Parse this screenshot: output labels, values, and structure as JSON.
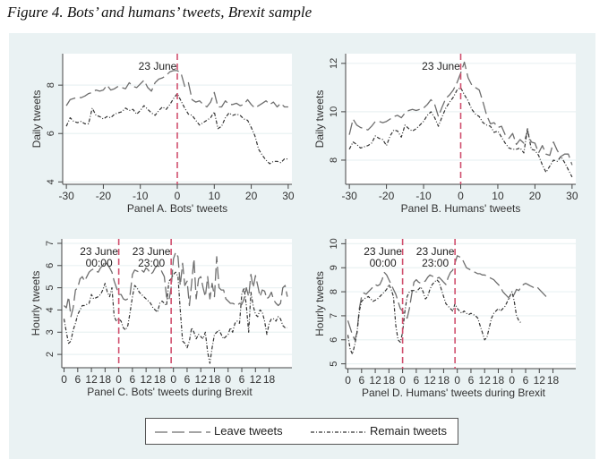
{
  "figure_title": "Figure 4. Bots’ and humans’ tweets, Brexit sample",
  "colors": {
    "leave": "#6e6e6e",
    "remain": "#333333",
    "vline": "#d0506e",
    "grid": "#eaf2f3",
    "background": "#eaf2f3"
  },
  "legend": [
    {
      "label": "Leave tweets",
      "style": "long-dash"
    },
    {
      "label": "Remain tweets",
      "style": "dash-dot"
    }
  ],
  "chart_data": [
    {
      "type": "line",
      "panel": "A",
      "xlabel": "Panel A. Bots' tweets",
      "ylabel": "Daily tweets",
      "xlim": [
        -31,
        31
      ],
      "ylim": [
        3.9,
        9.3
      ],
      "xticks": [
        -30,
        -20,
        -10,
        0,
        10,
        20,
        30
      ],
      "yticks": [
        4,
        6,
        8
      ],
      "annotations": [
        {
          "x": 0,
          "text": "23 June"
        }
      ],
      "x": [
        -30,
        -29,
        -28,
        -27,
        -26,
        -25,
        -24,
        -23,
        -22,
        -21,
        -20,
        -19,
        -18,
        -17,
        -16,
        -15,
        -14,
        -13,
        -12,
        -11,
        -10,
        -9,
        -8,
        -7,
        -6,
        -5,
        -4,
        -3,
        -2,
        -1,
        0,
        1,
        2,
        3,
        4,
        5,
        6,
        7,
        8,
        9,
        10,
        11,
        12,
        13,
        14,
        15,
        16,
        17,
        18,
        19,
        20,
        21,
        22,
        23,
        24,
        25,
        26,
        27,
        28,
        29,
        30
      ],
      "series": [
        {
          "name": "Leave tweets",
          "values": [
            7.15,
            7.4,
            7.45,
            7.5,
            7.48,
            7.55,
            7.65,
            7.7,
            7.8,
            7.75,
            7.8,
            8.0,
            7.8,
            7.85,
            7.95,
            7.9,
            7.85,
            8.1,
            7.95,
            7.9,
            8.05,
            8.2,
            7.9,
            7.75,
            8.1,
            8.25,
            8.3,
            8.4,
            8.55,
            8.6,
            8.6,
            8.5,
            7.95,
            8.1,
            7.4,
            7.3,
            7.35,
            7.2,
            7.1,
            7.3,
            7.7,
            7.1,
            7.1,
            7.35,
            7.2,
            7.2,
            7.25,
            7.15,
            7.2,
            7.4,
            7.2,
            7.05,
            7.15,
            7.25,
            7.35,
            7.2,
            7.3,
            7.1,
            7.25,
            7.1,
            7.1
          ]
        },
        {
          "name": "Remain tweets",
          "values": [
            6.3,
            6.65,
            6.5,
            6.45,
            6.5,
            6.4,
            6.4,
            7.05,
            6.75,
            6.7,
            6.6,
            6.7,
            6.65,
            6.8,
            6.85,
            6.9,
            7.05,
            6.95,
            7.0,
            6.8,
            6.95,
            7.15,
            7.0,
            6.85,
            6.75,
            6.95,
            7.1,
            7.0,
            7.2,
            7.45,
            7.65,
            7.35,
            7.05,
            6.8,
            6.75,
            6.55,
            6.35,
            6.45,
            6.55,
            6.65,
            6.9,
            6.2,
            6.3,
            6.65,
            6.85,
            6.75,
            6.8,
            6.75,
            6.6,
            6.55,
            6.25,
            5.9,
            5.35,
            5.1,
            4.9,
            4.75,
            4.85,
            4.85,
            4.8,
            4.95,
            4.95
          ]
        }
      ]
    },
    {
      "type": "line",
      "panel": "B",
      "xlabel": "Panel B. Humans' tweets",
      "ylabel": "Daily tweets",
      "xlim": [
        -31,
        31
      ],
      "ylim": [
        7,
        12.4
      ],
      "xticks": [
        -30,
        -20,
        -10,
        0,
        10,
        20,
        30
      ],
      "yticks": [
        8,
        10,
        12
      ],
      "annotations": [
        {
          "x": 0,
          "text": "23 June"
        }
      ],
      "x": [
        -30,
        -29,
        -28,
        -27,
        -26,
        -25,
        -24,
        -23,
        -22,
        -21,
        -20,
        -19,
        -18,
        -17,
        -16,
        -15,
        -14,
        -13,
        -12,
        -11,
        -10,
        -9,
        -8,
        -7,
        -6,
        -5,
        -4,
        -3,
        -2,
        -1,
        0,
        1,
        2,
        3,
        4,
        5,
        6,
        7,
        8,
        9,
        10,
        11,
        12,
        13,
        14,
        15,
        16,
        17,
        18,
        19,
        20,
        21,
        22,
        23,
        24,
        25,
        26,
        27,
        28,
        29,
        30
      ],
      "series": [
        {
          "name": "Leave tweets",
          "values": [
            9.05,
            9.7,
            9.45,
            9.35,
            9.3,
            9.25,
            9.4,
            9.6,
            9.6,
            9.55,
            9.6,
            9.7,
            9.8,
            9.85,
            9.75,
            9.95,
            10.05,
            10.1,
            10.05,
            10.1,
            10.15,
            10.3,
            10.5,
            10.3,
            9.8,
            10.2,
            10.55,
            10.7,
            10.9,
            11.2,
            11.6,
            12.05,
            11.4,
            11.1,
            11.0,
            10.9,
            10.4,
            9.85,
            9.5,
            9.55,
            9.35,
            9.4,
            9.05,
            8.9,
            9.1,
            8.65,
            8.85,
            8.7,
            9.2,
            8.75,
            8.7,
            8.3,
            8.6,
            8.25,
            8.2,
            8.75,
            8.4,
            8.15,
            8.25,
            8.25,
            7.8
          ]
        },
        {
          "name": "Remain tweets",
          "values": [
            8.45,
            8.75,
            8.65,
            8.5,
            8.55,
            8.6,
            8.7,
            9.0,
            8.9,
            8.85,
            8.6,
            9.0,
            9.25,
            9.2,
            8.95,
            9.45,
            9.3,
            9.2,
            9.3,
            9.45,
            9.6,
            9.85,
            10.0,
            9.75,
            9.4,
            9.8,
            10.15,
            10.4,
            10.6,
            10.9,
            11.0,
            10.7,
            10.45,
            10.1,
            9.9,
            9.8,
            9.55,
            9.45,
            9.4,
            9.15,
            9.2,
            8.95,
            8.7,
            8.5,
            8.45,
            8.45,
            8.5,
            8.3,
            9.3,
            8.45,
            8.4,
            8.2,
            7.8,
            7.5,
            7.75,
            8.0,
            7.95,
            8.15,
            7.9,
            7.6,
            7.3
          ]
        }
      ]
    },
    {
      "type": "line",
      "panel": "C",
      "xlabel": "Panel C. Bots' tweets during Brexit",
      "ylabel": "Hourly tweets",
      "xlim": [
        -1,
        100
      ],
      "ylim": [
        1.4,
        7.2
      ],
      "xticks": [
        0,
        6,
        12,
        18,
        24,
        30,
        36,
        42,
        48,
        54,
        60,
        66,
        72,
        78,
        84,
        90
      ],
      "xticklabels": [
        "0",
        "6",
        "12",
        "18",
        "0",
        "6",
        "12",
        "18",
        "0",
        "6",
        "12",
        "18",
        "0",
        "6",
        "12",
        "18"
      ],
      "yticks": [
        2,
        3,
        4,
        5,
        6,
        7
      ],
      "annotations": [
        {
          "x": 24,
          "text": "23 June\n00:00"
        },
        {
          "x": 47,
          "text": "23 June\n23:00"
        }
      ],
      "x_unit": "hour",
      "series": [
        {
          "name": "Leave tweets",
          "values": [
            4.2,
            4.1,
            4.6,
            3.7,
            4.1,
            4.9,
            5.0,
            5.4,
            5.5,
            5.3,
            5.5,
            5.7,
            5.8,
            5.85,
            5.75,
            5.7,
            5.9,
            6.0,
            6.2,
            6.05,
            5.9,
            5.7,
            5.3,
            5.0,
            4.7,
            4.7,
            4.5,
            4.45,
            4.5,
            4.7,
            5.6,
            5.8,
            5.75,
            5.7,
            5.8,
            5.7,
            5.9,
            5.8,
            5.6,
            5.7,
            5.9,
            6.0,
            5.95,
            5.7,
            5.5,
            4.6,
            4.4,
            5.0,
            6.3,
            6.6,
            6.4,
            5.1,
            6.1,
            5.1,
            5.3,
            4.2,
            5.2,
            6.3,
            4.5,
            5.4,
            5.5,
            5.0,
            4.6,
            5.5,
            4.5,
            5.2,
            4.6,
            6.4,
            5.0,
            4.9,
            4.9,
            4.5,
            4.4,
            4.3,
            4.3,
            4.25,
            4.2,
            4.3,
            4.25,
            4.5,
            5.0,
            4.6,
            5.6,
            5.0,
            5.55,
            5.1,
            4.6,
            4.9,
            4.85,
            4.5,
            4.6,
            4.8,
            4.45,
            4.3,
            4.2,
            4.3,
            5.0,
            5.1,
            4.6
          ]
        },
        {
          "name": "Remain tweets",
          "values": [
            3.6,
            3.0,
            2.5,
            2.6,
            3.1,
            3.4,
            3.8,
            4.0,
            4.2,
            4.2,
            4.25,
            4.3,
            4.7,
            4.5,
            4.55,
            4.6,
            4.7,
            4.9,
            5.2,
            4.8,
            4.6,
            5.0,
            3.7,
            3.5,
            3.6,
            3.5,
            3.2,
            3.1,
            3.3,
            3.9,
            4.6,
            5.1,
            5.0,
            4.8,
            4.7,
            4.6,
            4.5,
            4.4,
            4.3,
            4.1,
            4.0,
            3.9,
            4.3,
            4.4,
            4.3,
            4.2,
            5.3,
            5.4,
            5.6,
            5.7,
            5.5,
            4.0,
            2.6,
            2.5,
            2.3,
            2.6,
            3.2,
            3.0,
            2.7,
            2.9,
            2.8,
            2.7,
            3.0,
            2.1,
            1.6,
            2.3,
            2.9,
            3.0,
            3.1,
            2.9,
            2.7,
            2.8,
            2.9,
            3.2,
            3.0,
            3.4,
            3.5,
            3.4,
            4.7,
            5.0,
            4.2,
            3.0,
            4.8,
            4.2,
            3.8,
            3.7,
            4.0,
            3.9,
            3.5,
            2.9,
            3.4,
            3.6,
            3.6,
            3.5,
            3.7,
            3.6,
            3.3,
            3.2,
            3.2
          ]
        }
      ]
    },
    {
      "type": "line",
      "panel": "D",
      "xlabel": "Panel D. Humans' tweets during Brexit",
      "ylabel": "Hourly tweets",
      "xlim": [
        -1,
        100
      ],
      "ylim": [
        4.8,
        10.2
      ],
      "xticks": [
        0,
        6,
        12,
        18,
        24,
        30,
        36,
        42,
        48,
        54,
        60,
        66,
        72,
        78,
        84,
        90
      ],
      "xticklabels": [
        "0",
        "6",
        "12",
        "18",
        "0",
        "6",
        "12",
        "18",
        "0",
        "6",
        "12",
        "18",
        "0",
        "6",
        "12",
        "18"
      ],
      "yticks": [
        5,
        6,
        7,
        8,
        9,
        10
      ],
      "annotations": [
        {
          "x": 24,
          "text": "23 June\n00:00"
        },
        {
          "x": 47,
          "text": "23 June\n23:00"
        }
      ],
      "x_unit": "hour",
      "series": [
        {
          "name": "Leave tweets",
          "values": [
            6.8,
            6.5,
            6.2,
            6.0,
            6.3,
            7.3,
            7.8,
            7.95,
            7.9,
            8.0,
            8.1,
            8.2,
            8.3,
            8.25,
            8.3,
            8.5,
            8.8,
            8.7,
            8.5,
            8.3,
            8.1,
            7.9,
            7.6,
            7.3,
            7.2,
            7.0,
            6.9,
            7.3,
            7.9,
            8.4,
            8.5,
            8.4,
            8.35,
            8.4,
            8.45,
            8.6,
            8.7,
            8.65,
            8.6,
            8.55,
            8.6,
            8.5,
            8.4,
            8.3,
            8.6,
            8.8,
            8.9,
            9.2,
            9.5,
            9.45,
            9.4,
            9.2,
            9.0,
            8.95,
            8.9,
            8.85,
            8.8,
            8.75,
            8.75,
            8.7,
            8.7,
            8.65,
            8.6,
            8.55,
            8.5,
            8.4,
            8.3,
            8.2,
            8.0,
            7.9,
            7.8,
            7.7,
            7.75,
            7.9,
            8.1,
            8.05,
            8.2,
            8.3,
            8.35,
            8.3,
            8.25,
            8.2,
            8.15,
            8.2,
            8.1,
            8.0,
            7.9,
            7.8,
            7.7
          ]
        },
        {
          "name": "Remain tweets",
          "values": [
            6.2,
            5.6,
            5.4,
            5.8,
            6.3,
            7.2,
            7.6,
            7.7,
            7.75,
            7.8,
            7.7,
            7.6,
            7.65,
            7.7,
            7.8,
            7.9,
            8.0,
            8.1,
            8.3,
            8.1,
            7.8,
            6.6,
            6.0,
            5.9,
            6.3,
            7.2,
            7.8,
            8.0,
            8.05,
            8.05,
            8.0,
            8.1,
            8.2,
            8.0,
            7.7,
            7.8,
            8.1,
            8.3,
            8.4,
            8.5,
            8.4,
            8.1,
            7.8,
            7.5,
            7.4,
            7.3,
            7.2,
            7.5,
            7.3,
            7.2,
            7.1,
            7.2,
            7.1,
            7.05,
            7.1,
            7.05,
            7.0,
            6.9,
            6.6,
            6.3,
            6.0,
            6.1,
            6.5,
            6.9,
            7.1,
            7.2,
            7.3,
            7.2,
            7.3,
            7.4,
            7.6,
            7.8,
            8.0,
            7.6,
            7.0,
            6.8,
            6.7
          ]
        }
      ]
    }
  ]
}
